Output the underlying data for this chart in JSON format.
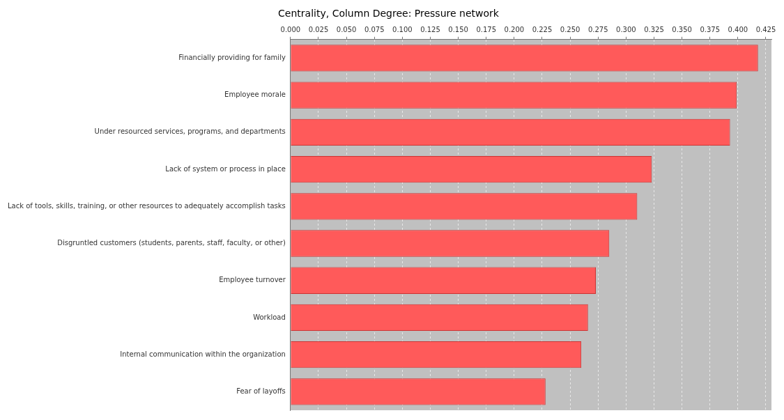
{
  "chart_data": {
    "type": "bar",
    "orientation": "horizontal",
    "title": "Centrality, Column Degree: Pressure network",
    "categories": [
      "Financially providing for family",
      "Employee morale",
      "Under resourced services, programs, and departments",
      "Lack of system or process in place",
      "Lack of tools, skills, training, or other resources to adequately accomplish tasks",
      "Disgruntled customers (students, parents, staff, faculty, or other)",
      "Employee turnover",
      "Workload",
      "Internal communication within the organization",
      "Fear of layoffs"
    ],
    "values": [
      0.418,
      0.399,
      0.393,
      0.323,
      0.31,
      0.285,
      0.273,
      0.266,
      0.26,
      0.228
    ],
    "color": "#ff5a5a",
    "xlim": [
      0,
      0.43
    ],
    "xticks": [
      {
        "value": 0,
        "label": "0.000"
      },
      {
        "value": 0.025,
        "label": "0.025"
      },
      {
        "value": 0.05,
        "label": "0.050"
      },
      {
        "value": 0.075,
        "label": "0.075"
      },
      {
        "value": 0.1,
        "label": "0.100"
      },
      {
        "value": 0.125,
        "label": "0.125"
      },
      {
        "value": 0.15,
        "label": "0.150"
      },
      {
        "value": 0.175,
        "label": "0.175"
      },
      {
        "value": 0.2,
        "label": "0.200"
      },
      {
        "value": 0.225,
        "label": "0.225"
      },
      {
        "value": 0.25,
        "label": "0.250"
      },
      {
        "value": 0.275,
        "label": "0.275"
      },
      {
        "value": 0.3,
        "label": "0.300"
      },
      {
        "value": 0.325,
        "label": "0.325"
      },
      {
        "value": 0.35,
        "label": "0.350"
      },
      {
        "value": 0.375,
        "label": "0.375"
      },
      {
        "value": 0.4,
        "label": "0.400"
      },
      {
        "value": 0.425,
        "label": "0.425"
      }
    ],
    "grid": "x",
    "legend": false
  }
}
